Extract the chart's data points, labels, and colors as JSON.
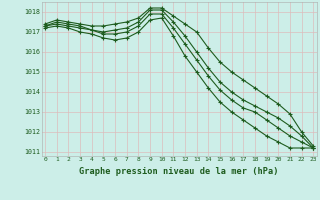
{
  "xlabel": "Graphe pression niveau de la mer (hPa)",
  "background_color": "#cceee8",
  "grid_color": "#ddbcbc",
  "line_color": "#1e5c1e",
  "xmin": 0,
  "xmax": 23,
  "ymin": 1011,
  "ymax": 1018.5,
  "yticks": [
    1011,
    1012,
    1013,
    1014,
    1015,
    1016,
    1017,
    1018
  ],
  "series": [
    [
      1017.4,
      1017.6,
      1017.5,
      1017.4,
      1017.3,
      1017.3,
      1017.4,
      1017.5,
      1017.7,
      1018.2,
      1018.2,
      1017.8,
      1017.4,
      1017.0,
      1016.2,
      1015.5,
      1015.0,
      1014.6,
      1014.2,
      1013.8,
      1013.4,
      1012.9,
      1012.0,
      1011.3
    ],
    [
      1017.3,
      1017.5,
      1017.4,
      1017.3,
      1017.1,
      1017.0,
      1017.1,
      1017.2,
      1017.5,
      1018.1,
      1018.1,
      1017.5,
      1016.8,
      1016.0,
      1015.2,
      1014.5,
      1014.0,
      1013.6,
      1013.3,
      1013.0,
      1012.7,
      1012.3,
      1011.8,
      1011.2
    ],
    [
      1017.3,
      1017.4,
      1017.3,
      1017.2,
      1017.1,
      1016.9,
      1016.9,
      1017.0,
      1017.3,
      1017.9,
      1017.9,
      1017.2,
      1016.4,
      1015.6,
      1014.8,
      1014.1,
      1013.6,
      1013.2,
      1013.0,
      1012.6,
      1012.2,
      1011.8,
      1011.5,
      1011.2
    ],
    [
      1017.2,
      1017.3,
      1017.2,
      1017.0,
      1016.9,
      1016.7,
      1016.6,
      1016.7,
      1017.0,
      1017.6,
      1017.7,
      1016.8,
      1015.8,
      1015.0,
      1014.2,
      1013.5,
      1013.0,
      1012.6,
      1012.2,
      1011.8,
      1011.5,
      1011.2,
      1011.2,
      1011.2
    ]
  ]
}
